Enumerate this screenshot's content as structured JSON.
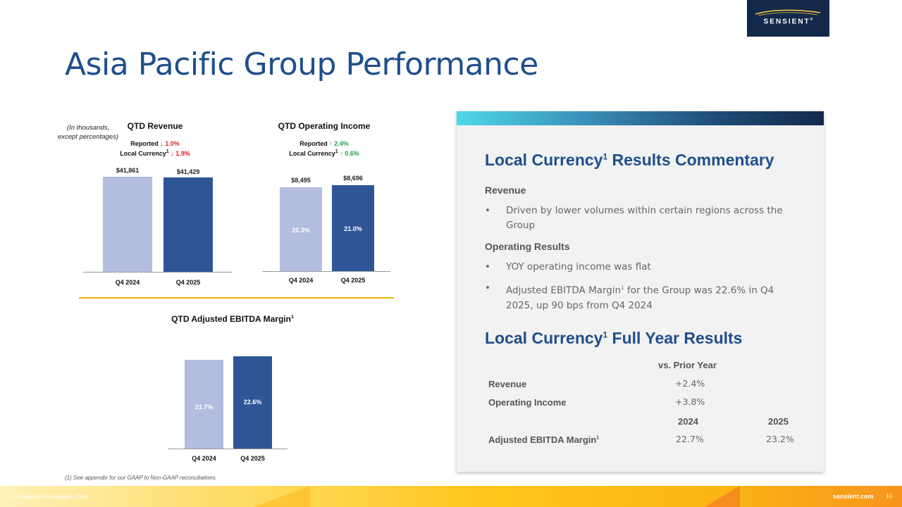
{
  "logo": {
    "brand": "SENSIENT",
    "tm": "®"
  },
  "title": "Asia Pacific Group Performance",
  "chart_data": [
    {
      "type": "bar",
      "title": "QTD Revenue",
      "note_line1": "(In thousands,",
      "note_line2": "except percentages)",
      "reported_label": "Reported",
      "reported_arrow": "↓",
      "reported_value": "1.0%",
      "local_label": "Local Currency",
      "local_sup": "1",
      "local_arrow": "↓",
      "local_value": "1.9%",
      "categories": [
        "Q4 2024",
        "Q4 2025"
      ],
      "values": [
        41861,
        41429
      ],
      "value_labels": [
        "$41,861",
        "$41,429"
      ]
    },
    {
      "type": "bar",
      "title": "QTD Operating Income",
      "reported_label": "Reported",
      "reported_arrow": "↑",
      "reported_value": "2.4%",
      "local_label": "Local Currency",
      "local_sup": "1",
      "local_arrow": "↑",
      "local_value": "0.6%",
      "categories": [
        "Q4 2024",
        "Q4 2025"
      ],
      "values": [
        8495,
        8696
      ],
      "value_labels": [
        "$8,495",
        "$8,696"
      ],
      "margin_labels": [
        "20.3%",
        "21.0%"
      ]
    },
    {
      "type": "bar",
      "title": "QTD Adjusted EBITDA Margin",
      "title_sup": "1",
      "categories": [
        "Q4 2024",
        "Q4 2025"
      ],
      "values": [
        21.7,
        22.6
      ],
      "value_labels": [
        "21.7%",
        "22.6%"
      ]
    }
  ],
  "panel": {
    "heading1_a": "Local Currency",
    "heading1_sup": "1",
    "heading1_b": " Results Commentary",
    "revenue_label": "Revenue",
    "revenue_bullet": "Driven by lower volumes within certain regions across the Group",
    "operating_label": "Operating Results",
    "op_bullet1": "YOY operating income was flat",
    "op_bullet2_a": "Adjusted EBITDA Margin",
    "op_bullet2_sup": "1",
    "op_bullet2_b": " for the Group was 22.6% in Q4 2025, up 90 bps from Q4 2024",
    "bullet_char": "•",
    "heading2_a": "Local Currency",
    "heading2_sup": "1",
    "heading2_b": " Full Year Results",
    "table": {
      "col_header": "vs. Prior Year",
      "row_revenue_label": "Revenue",
      "row_revenue_value": "+2.4%",
      "row_op_label": "Operating Income",
      "row_op_value": "+3.8%",
      "year1": "2024",
      "year2": "2025",
      "row_ebitda_label": "Adjusted EBITDA Margin",
      "row_ebitda_sup": "1",
      "row_ebitda_2024": "22.7%",
      "row_ebitda_2025": "23.2%"
    }
  },
  "footnote": "(1) See appendix for our GAAP to Non-GAAP reconciliations.",
  "footer": {
    "copyright": "© Sensient Technologies 2026",
    "site": "sensient.com",
    "page_number": "10"
  },
  "colors": {
    "bar_2024": "#b3bde0",
    "bar_2025": "#2f5597",
    "title_blue": "#1f4e8c",
    "gold": "#f0b400"
  }
}
